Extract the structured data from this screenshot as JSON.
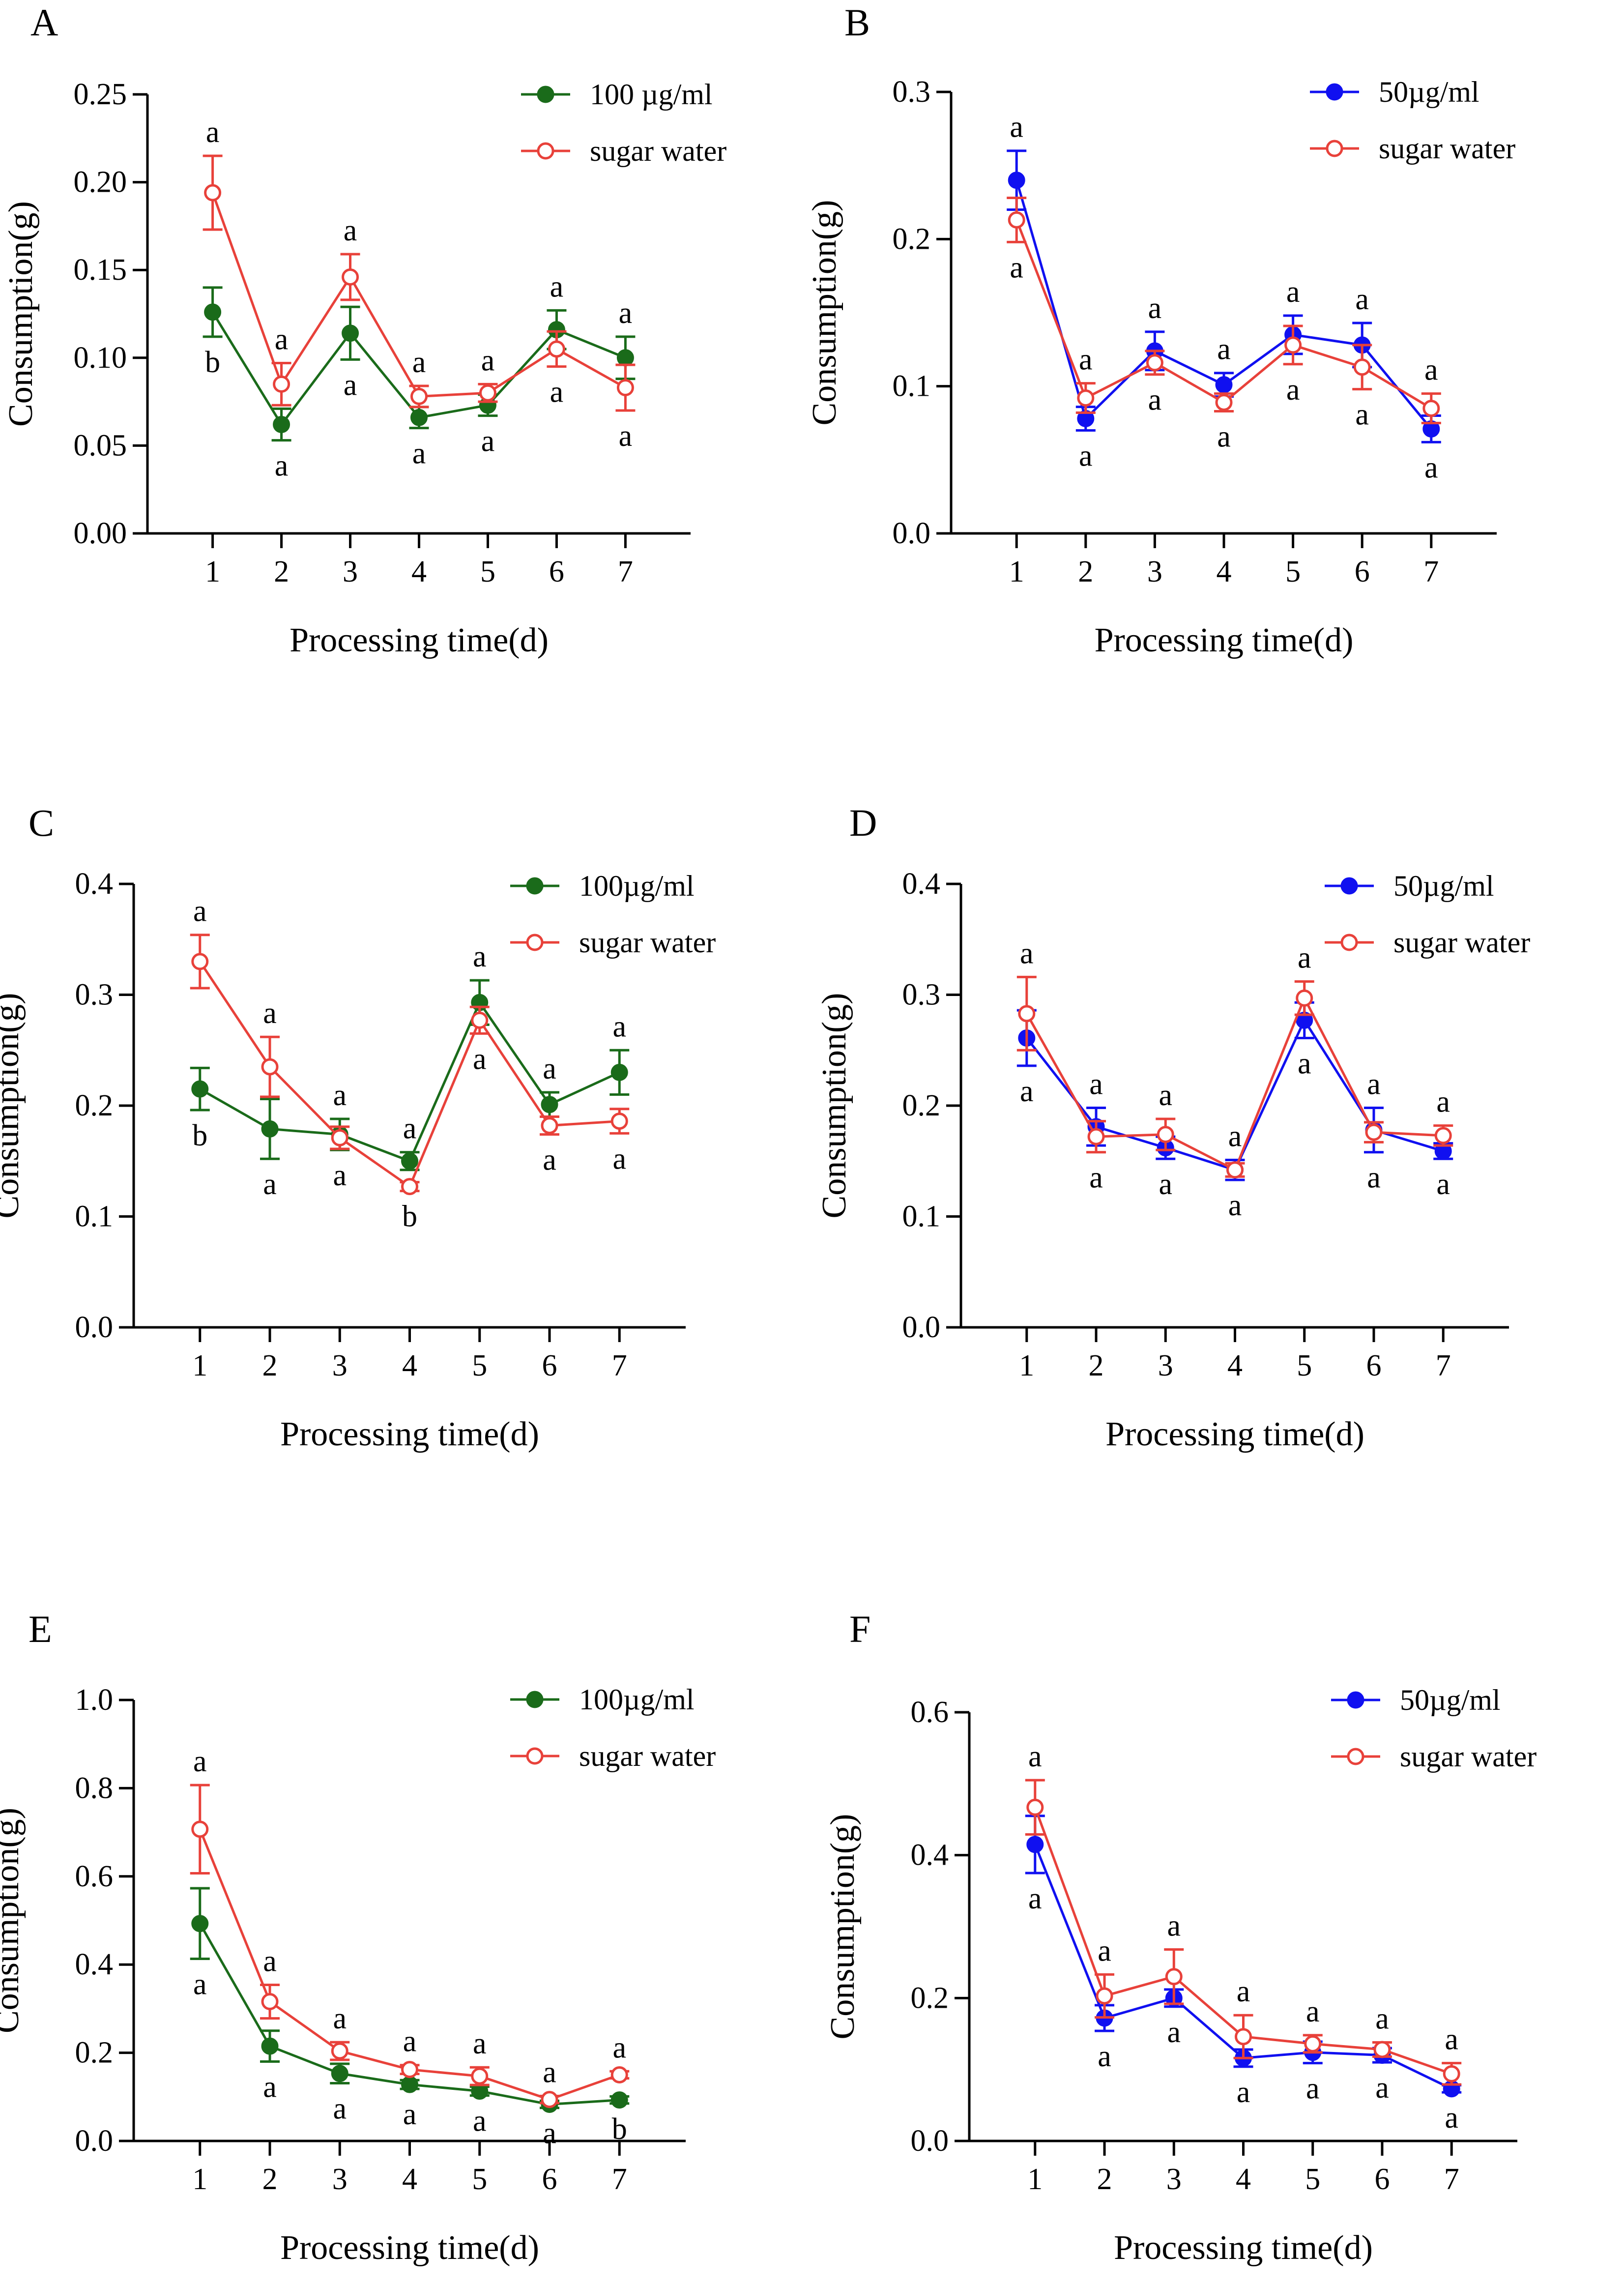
{
  "chart_data": [
    {
      "type": "line",
      "panel": "A",
      "xlabel": "Processing time(d)",
      "ylabel": "Consumption(g)",
      "x": [
        1,
        2,
        3,
        4,
        5,
        6,
        7
      ],
      "ylim": [
        0,
        0.25
      ],
      "yticks": [
        "0.00",
        "0.05",
        "0.10",
        "0.15",
        "0.20",
        "0.25"
      ],
      "legend_position": "top-right",
      "series": [
        {
          "name": "100 µg/ml",
          "color": "#1a6b1a",
          "marker": "filled-circle",
          "values": [
            0.126,
            0.062,
            0.114,
            0.066,
            0.073,
            0.116,
            0.1
          ],
          "errors": [
            0.014,
            0.009,
            0.015,
            0.006,
            0.006,
            0.011,
            0.012
          ],
          "labels": [
            "b",
            "a",
            "a",
            "a",
            "a",
            "a",
            "a"
          ]
        },
        {
          "name": "sugar water",
          "color": "#e8413a",
          "marker": "open-circle",
          "values": [
            0.194,
            0.085,
            0.146,
            0.078,
            0.08,
            0.105,
            0.083
          ],
          "errors": [
            0.021,
            0.012,
            0.013,
            0.006,
            0.005,
            0.01,
            0.013
          ],
          "labels": [
            "a",
            "a",
            "a",
            "a",
            "a",
            "a",
            "a"
          ]
        }
      ]
    },
    {
      "type": "line",
      "panel": "B",
      "xlabel": "Processing time(d)",
      "ylabel": "Consumption(g)",
      "x": [
        1,
        2,
        3,
        4,
        5,
        6,
        7
      ],
      "ylim": [
        0,
        0.3
      ],
      "yticks": [
        "0.0",
        "0.1",
        "0.2",
        "0.3"
      ],
      "legend_position": "top-right",
      "series": [
        {
          "name": "50µg/ml",
          "color": "#1010f0",
          "marker": "filled-circle",
          "values": [
            0.24,
            0.078,
            0.124,
            0.101,
            0.135,
            0.128,
            0.071
          ],
          "errors": [
            0.02,
            0.008,
            0.013,
            0.008,
            0.013,
            0.015,
            0.009
          ],
          "labels": [
            "a",
            "a",
            "a",
            "a",
            "a",
            "a",
            "a"
          ]
        },
        {
          "name": "sugar water",
          "color": "#e8413a",
          "marker": "open-circle",
          "values": [
            0.213,
            0.092,
            0.116,
            0.089,
            0.128,
            0.113,
            0.085
          ],
          "errors": [
            0.015,
            0.01,
            0.008,
            0.006,
            0.013,
            0.015,
            0.01
          ],
          "labels": [
            "a",
            "a",
            "a",
            "a",
            "a",
            "a",
            "a"
          ]
        }
      ]
    },
    {
      "type": "line",
      "panel": "C",
      "xlabel": "Processing time(d)",
      "ylabel": "Consumption(g)",
      "x": [
        1,
        2,
        3,
        4,
        5,
        6,
        7
      ],
      "ylim": [
        0,
        0.4
      ],
      "yticks": [
        "0.0",
        "0.1",
        "0.2",
        "0.3",
        "0.4"
      ],
      "legend_position": "top-right",
      "series": [
        {
          "name": "100µg/ml",
          "color": "#1a6b1a",
          "marker": "filled-circle",
          "values": [
            0.215,
            0.179,
            0.174,
            0.15,
            0.293,
            0.201,
            0.23
          ],
          "errors": [
            0.019,
            0.027,
            0.014,
            0.008,
            0.02,
            0.011,
            0.02
          ],
          "labels": [
            "b",
            "a",
            "a",
            "a",
            "a",
            "a",
            "a"
          ]
        },
        {
          "name": "sugar water",
          "color": "#e8413a",
          "marker": "open-circle",
          "values": [
            0.33,
            0.235,
            0.171,
            0.127,
            0.277,
            0.182,
            0.186
          ],
          "errors": [
            0.024,
            0.027,
            0.01,
            0.004,
            0.012,
            0.008,
            0.011
          ],
          "labels": [
            "a",
            "a",
            "a",
            "b",
            "a",
            "a",
            "a"
          ]
        }
      ]
    },
    {
      "type": "line",
      "panel": "D",
      "xlabel": "Processing time(d)",
      "ylabel": "Consumption(g)",
      "x": [
        1,
        2,
        3,
        4,
        5,
        6,
        7
      ],
      "ylim": [
        0,
        0.4
      ],
      "yticks": [
        "0.0",
        "0.1",
        "0.2",
        "0.3",
        "0.4"
      ],
      "legend_position": "top-right",
      "series": [
        {
          "name": "50µg/ml",
          "color": "#1010f0",
          "marker": "filled-circle",
          "values": [
            0.261,
            0.181,
            0.162,
            0.142,
            0.277,
            0.178,
            0.159
          ],
          "errors": [
            0.025,
            0.017,
            0.01,
            0.009,
            0.016,
            0.02,
            0.007
          ],
          "labels": [
            "a",
            "a",
            "a",
            "a",
            "a",
            "a",
            "a"
          ]
        },
        {
          "name": "sugar water",
          "color": "#e8413a",
          "marker": "open-circle",
          "values": [
            0.283,
            0.172,
            0.174,
            0.142,
            0.297,
            0.176,
            0.173
          ],
          "errors": [
            0.033,
            0.014,
            0.014,
            0.006,
            0.015,
            0.009,
            0.009
          ],
          "labels": [
            "a",
            "a",
            "a",
            "a",
            "a",
            "a",
            "a"
          ]
        }
      ]
    },
    {
      "type": "line",
      "panel": "E",
      "xlabel": "Processing time(d)",
      "ylabel": "Consumption(g)",
      "x": [
        1,
        2,
        3,
        4,
        5,
        6,
        7
      ],
      "ylim": [
        0,
        1.0
      ],
      "yticks": [
        "0.0",
        "0.2",
        "0.4",
        "0.6",
        "0.8",
        "1.0"
      ],
      "legend_position": "top-right",
      "series": [
        {
          "name": "100µg/ml",
          "color": "#1a6b1a",
          "marker": "filled-circle",
          "values": [
            0.493,
            0.215,
            0.153,
            0.128,
            0.113,
            0.083,
            0.093
          ],
          "errors": [
            0.08,
            0.035,
            0.022,
            0.01,
            0.01,
            0.008,
            0.008
          ],
          "labels": [
            "a",
            "a",
            "a",
            "a",
            "a",
            "a",
            "b"
          ]
        },
        {
          "name": "sugar water",
          "color": "#e8413a",
          "marker": "open-circle",
          "values": [
            0.707,
            0.316,
            0.204,
            0.162,
            0.147,
            0.094,
            0.15
          ],
          "errors": [
            0.1,
            0.038,
            0.02,
            0.01,
            0.02,
            0.008,
            0.008
          ],
          "labels": [
            "a",
            "a",
            "a",
            "a",
            "a",
            "a",
            "a"
          ]
        }
      ]
    },
    {
      "type": "line",
      "panel": "F",
      "xlabel": "Processing time(d)",
      "ylabel": "Consumption(g)",
      "x": [
        1,
        2,
        3,
        4,
        5,
        6,
        7
      ],
      "ylim": [
        0,
        0.6
      ],
      "yticks": [
        "0.0",
        "0.2",
        "0.4",
        "0.6"
      ],
      "legend_position": "top-right",
      "series": [
        {
          "name": "50µg/ml",
          "color": "#1010f0",
          "marker": "filled-circle",
          "values": [
            0.415,
            0.172,
            0.2,
            0.116,
            0.124,
            0.12,
            0.073
          ],
          "errors": [
            0.04,
            0.018,
            0.012,
            0.012,
            0.015,
            0.01,
            0.005
          ],
          "labels": [
            "a",
            "a",
            "a",
            "a",
            "a",
            "a",
            "a"
          ]
        },
        {
          "name": "sugar water",
          "color": "#e8413a",
          "marker": "open-circle",
          "values": [
            0.467,
            0.203,
            0.23,
            0.146,
            0.136,
            0.128,
            0.094
          ],
          "errors": [
            0.038,
            0.03,
            0.038,
            0.03,
            0.012,
            0.01,
            0.015
          ],
          "labels": [
            "a",
            "a",
            "a",
            "a",
            "a",
            "a",
            "a"
          ]
        }
      ]
    }
  ]
}
